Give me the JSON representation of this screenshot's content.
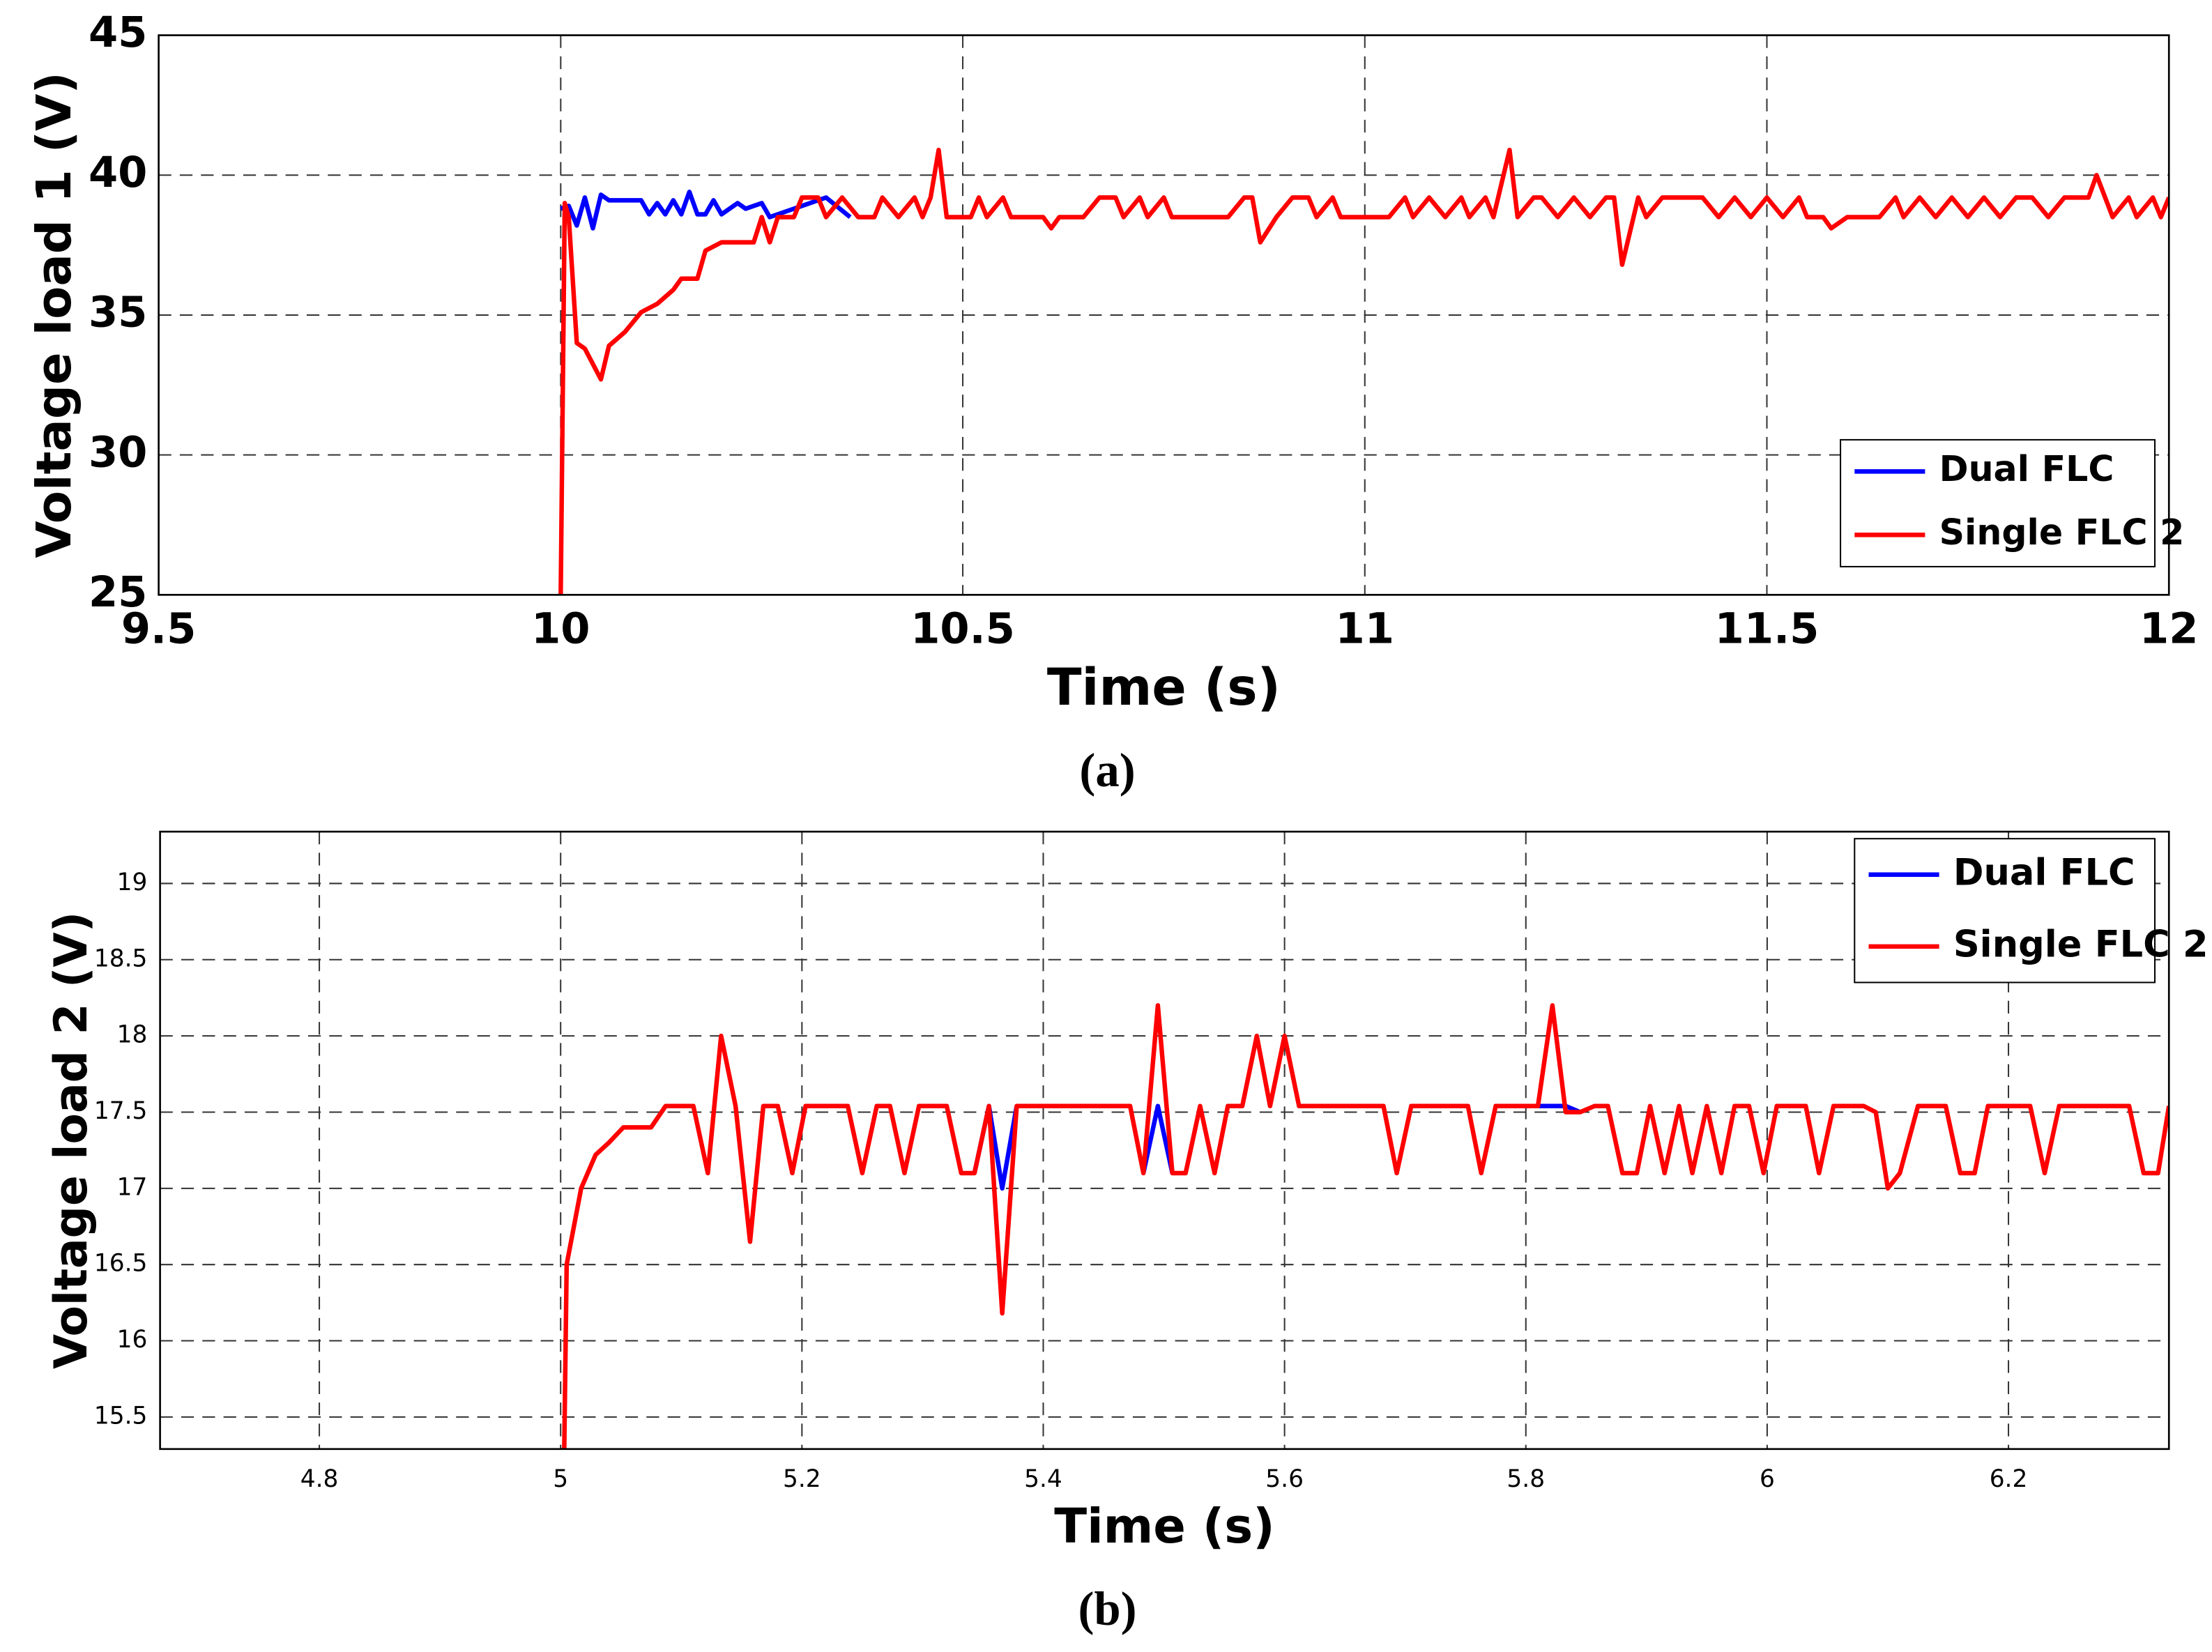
{
  "chart_data": [
    {
      "type": "line",
      "xlabel": "Time (s)",
      "ylabel": "Voltage load 1 (V)",
      "caption": "(a)",
      "xlim": [
        9.5,
        12
      ],
      "xticks": [
        9.5,
        10,
        10.5,
        11,
        11.5,
        12
      ],
      "ylim": [
        25,
        45
      ],
      "yticks": [
        25,
        30,
        35,
        40,
        45
      ],
      "grid": true,
      "legend": "lower right",
      "series": [
        {
          "name": "Dual FLC",
          "color": "#0000ff",
          "x": [
            10.0,
            10.01,
            10.02,
            10.03,
            10.04,
            10.05,
            10.06,
            10.1,
            10.11,
            10.12,
            10.13,
            10.14,
            10.15,
            10.16,
            10.17,
            10.18,
            10.19,
            10.2,
            10.22,
            10.23,
            10.25,
            10.26,
            10.33,
            10.36
          ],
          "values": [
            38.8,
            38.9,
            38.2,
            39.2,
            38.1,
            39.3,
            39.1,
            39.1,
            38.6,
            39.0,
            38.6,
            39.1,
            38.6,
            39.4,
            38.6,
            38.6,
            39.1,
            38.6,
            39.0,
            38.8,
            39.0,
            38.5,
            39.2,
            38.5
          ]
        },
        {
          "name": "Single FLC 2",
          "color": "#ff0000",
          "x": [
            10.0,
            10.005,
            10.01,
            10.02,
            10.03,
            10.05,
            10.06,
            10.08,
            10.1,
            10.12,
            10.14,
            10.15,
            10.17,
            10.18,
            10.2,
            10.24,
            10.25,
            10.26,
            10.27,
            10.29,
            10.3,
            10.32,
            10.33,
            10.35,
            10.37,
            10.39,
            10.4,
            10.42,
            10.44,
            10.45,
            10.46,
            10.47,
            10.48,
            10.51,
            10.52,
            10.53,
            10.55,
            10.56,
            10.6,
            10.61,
            10.62,
            10.65,
            10.67,
            10.69,
            10.7,
            10.72,
            10.73,
            10.75,
            10.76,
            10.83,
            10.85,
            10.86,
            10.87,
            10.89,
            10.91,
            10.93,
            10.94,
            10.96,
            10.97,
            11.03,
            11.05,
            11.06,
            11.08,
            11.1,
            11.12,
            11.13,
            11.15,
            11.16,
            11.18,
            11.19,
            11.21,
            11.22,
            11.24,
            11.26,
            11.28,
            11.3,
            11.31,
            11.32,
            11.34,
            11.35,
            11.37,
            11.42,
            11.44,
            11.46,
            11.48,
            11.5,
            11.52,
            11.54,
            11.55,
            11.57,
            11.58,
            11.6,
            11.64,
            11.66,
            11.67,
            11.69,
            11.71,
            11.73,
            11.75,
            11.77,
            11.79,
            11.81,
            11.83,
            11.85,
            11.87,
            11.9,
            11.91,
            11.93,
            11.95,
            11.96,
            11.98,
            11.99,
            12.0
          ],
          "values": [
            25,
            39,
            38.5,
            34,
            33.8,
            32.7,
            33.9,
            34.4,
            35.1,
            35.4,
            35.9,
            36.3,
            36.3,
            37.3,
            37.6,
            37.6,
            38.5,
            37.6,
            38.5,
            38.5,
            39.2,
            39.2,
            38.5,
            39.2,
            38.5,
            38.5,
            39.2,
            38.5,
            39.2,
            38.5,
            39.2,
            40.9,
            38.5,
            38.5,
            39.2,
            38.5,
            39.2,
            38.5,
            38.5,
            38.1,
            38.5,
            38.5,
            39.2,
            39.2,
            38.5,
            39.2,
            38.5,
            39.2,
            38.5,
            38.5,
            39.2,
            39.2,
            37.6,
            38.5,
            39.2,
            39.2,
            38.5,
            39.2,
            38.5,
            38.5,
            39.2,
            38.5,
            39.2,
            38.5,
            39.2,
            38.5,
            39.2,
            38.5,
            40.9,
            38.5,
            39.2,
            39.2,
            38.5,
            39.2,
            38.5,
            39.2,
            39.2,
            36.8,
            39.2,
            38.5,
            39.2,
            39.2,
            38.5,
            39.2,
            38.5,
            39.2,
            38.5,
            39.2,
            38.5,
            38.5,
            38.1,
            38.5,
            38.5,
            39.2,
            38.5,
            39.2,
            38.5,
            39.2,
            38.5,
            39.2,
            38.5,
            39.2,
            39.2,
            38.5,
            39.2,
            39.2,
            40,
            38.5,
            39.2,
            38.5,
            39.2,
            38.5,
            39.2
          ]
        }
      ]
    },
    {
      "type": "line",
      "xlabel": "Time (s)",
      "ylabel": "Voltage load 2 (V)",
      "caption": "(b)",
      "xlim": [
        4.668,
        6.333
      ],
      "xticks": [
        4.8,
        5,
        5.2,
        5.4,
        5.6,
        5.8,
        6,
        6.2
      ],
      "ylim": [
        15.29,
        19.34
      ],
      "yticks": [
        15.5,
        16,
        16.5,
        17,
        17.5,
        18,
        18.5,
        19
      ],
      "grid": true,
      "legend": "upper right",
      "series": [
        {
          "name": "Dual FLC",
          "color": "#0000ff",
          "x": [
            5.343,
            5.355,
            5.366,
            5.378,
            5.472,
            5.483,
            5.495,
            5.507,
            5.7,
            5.81,
            5.833,
            5.845
          ],
          "values": [
            17.1,
            17.54,
            17.0,
            17.54,
            null,
            17.1,
            17.54,
            17.1,
            null,
            17.54,
            17.54,
            17.5
          ]
        },
        {
          "name": "Single FLC 2",
          "color": "#ff0000",
          "x": [
            5.003,
            5.005,
            5.017,
            5.029,
            5.04,
            5.052,
            5.075,
            5.087,
            5.11,
            5.122,
            5.133,
            5.145,
            5.157,
            5.168,
            5.18,
            5.192,
            5.203,
            5.238,
            5.25,
            5.262,
            5.273,
            5.285,
            5.297,
            5.32,
            5.332,
            5.343,
            5.355,
            5.366,
            5.378,
            5.472,
            5.483,
            5.495,
            5.507,
            5.518,
            5.53,
            5.542,
            5.553,
            5.565,
            5.577,
            5.588,
            5.6,
            5.612,
            5.682,
            5.693,
            5.705,
            5.752,
            5.763,
            5.775,
            5.81,
            5.822,
            5.833,
            5.845,
            5.857,
            5.868,
            5.88,
            5.892,
            5.903,
            5.915,
            5.927,
            5.938,
            5.95,
            5.962,
            5.973,
            5.985,
            5.997,
            6.008,
            6.032,
            6.043,
            6.055,
            6.08,
            6.09,
            6.1,
            6.11,
            6.125,
            6.148,
            6.16,
            6.172,
            6.183,
            6.218,
            6.23,
            6.242,
            6.3,
            6.312,
            6.324,
            6.333
          ],
          "values": [
            15.29,
            16.5,
            17.0,
            17.22,
            17.3,
            17.4,
            17.4,
            17.54,
            17.54,
            17.1,
            18.0,
            17.54,
            16.65,
            17.54,
            17.54,
            17.1,
            17.54,
            17.54,
            17.1,
            17.54,
            17.54,
            17.1,
            17.54,
            17.54,
            17.1,
            17.1,
            17.54,
            16.18,
            17.54,
            17.54,
            17.1,
            18.2,
            17.1,
            17.1,
            17.54,
            17.1,
            17.54,
            17.54,
            18.0,
            17.54,
            18.0,
            17.54,
            17.54,
            17.1,
            17.54,
            17.54,
            17.1,
            17.54,
            17.54,
            18.2,
            17.5,
            17.5,
            17.54,
            17.54,
            17.1,
            17.1,
            17.54,
            17.1,
            17.54,
            17.1,
            17.54,
            17.1,
            17.54,
            17.54,
            17.1,
            17.54,
            17.54,
            17.1,
            17.54,
            17.54,
            17.5,
            17.0,
            17.1,
            17.54,
            17.54,
            17.1,
            17.1,
            17.54,
            17.54,
            17.1,
            17.54,
            17.54,
            17.1,
            17.1,
            17.54
          ]
        }
      ]
    }
  ]
}
